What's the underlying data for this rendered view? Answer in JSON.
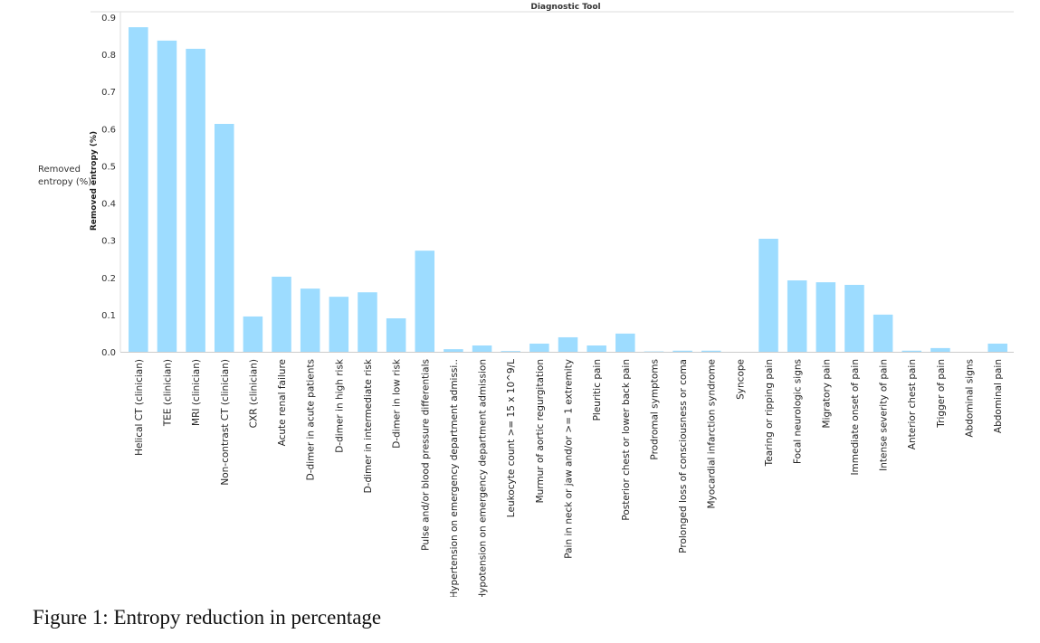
{
  "chart_data": {
    "type": "bar",
    "title": "Diagnostic Tool",
    "ylabel": "Removed entropy (%)",
    "xlabel": "",
    "ylim": [
      0,
      0.9
    ],
    "yticks": [
      "0.0",
      "0.1",
      "0.2",
      "0.3",
      "0.4",
      "0.5",
      "0.6",
      "0.7",
      "0.8",
      "0.9"
    ],
    "grid": false,
    "bar_color": "#9ddcff",
    "categories": [
      "Helical CT (clinician)",
      "TEE (clinician)",
      "MRI (clinician)",
      "Non-contrast CT (clinician)",
      "CXR (clinician)",
      "Acute renal failure",
      "D-dimer in acute patients",
      "D-dimer in high risk",
      "D-dimer in intermediate risk",
      "D-dimer in low risk",
      "Pulse and/or blood pressure differentials",
      "Hypertension on emergency department admissi..",
      "Hypotension on emergency department admission",
      "Leukocyte count >= 15 x 10^9/L",
      "Murmur of aortic regurgitation",
      "Pain in neck or jaw and/or >= 1 extremity",
      "Pleuritic pain",
      "Posterior chest or lower back pain",
      "Prodromal symptoms",
      "Prolonged loss of consciousness or coma",
      "Myocardial infarction syndrome",
      "Syncope",
      "Tearing or ripping pain",
      "Focal neurologic signs",
      "Migratory pain",
      "Immediate onset of pain",
      "Intense severity of pain",
      "Anterior chest pain",
      "Trigger of pain",
      "Abdominal signs",
      "Abdominal pain"
    ],
    "values": [
      0.873,
      0.837,
      0.815,
      0.613,
      0.095,
      0.202,
      0.17,
      0.148,
      0.16,
      0.09,
      0.272,
      0.007,
      0.017,
      0.002,
      0.022,
      0.039,
      0.017,
      0.049,
      0.001,
      0.003,
      0.003,
      0.0,
      0.304,
      0.192,
      0.187,
      0.18,
      0.1,
      0.003,
      0.01,
      0.0,
      0.022
    ]
  },
  "legend_label": "Removed entropy (%)",
  "caption": "Figure 1: Entropy reduction in percentage"
}
